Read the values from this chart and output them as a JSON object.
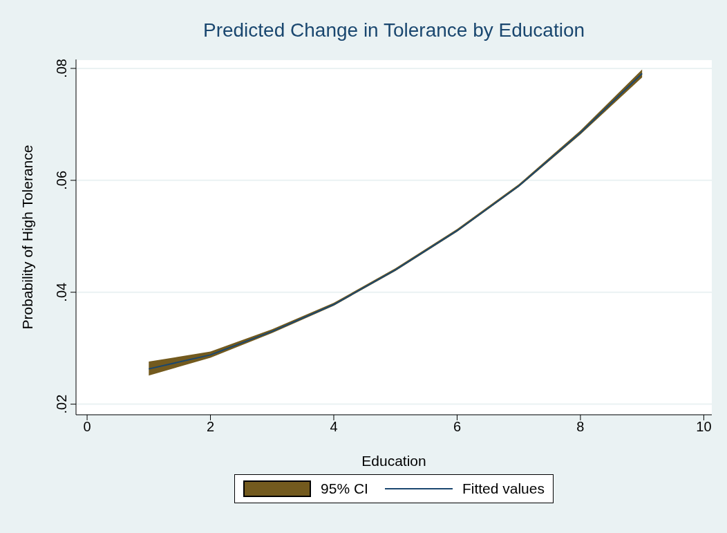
{
  "chart_data": {
    "type": "line",
    "title": "Predicted Change in Tolerance by Education",
    "xlabel": "Education",
    "ylabel": "Probability of High Tolerance",
    "x": [
      1,
      2,
      3,
      4,
      5,
      6,
      7,
      8,
      9
    ],
    "series": [
      {
        "name": "Fitted values",
        "color": "#1a476f",
        "values": [
          0.0263,
          0.0288,
          0.033,
          0.0378,
          0.044,
          0.051,
          0.059,
          0.0685,
          0.0791
        ],
        "lower": [
          0.0251,
          0.0283,
          0.0327,
          0.0376,
          0.0438,
          0.0508,
          0.0588,
          0.0682,
          0.0784
        ],
        "upper": [
          0.0276,
          0.0294,
          0.0334,
          0.0381,
          0.0443,
          0.0513,
          0.0593,
          0.0689,
          0.0798
        ]
      }
    ],
    "annotations": [
      "95% CI"
    ],
    "xlim": [
      -0.18,
      10.13
    ],
    "xticks": [
      0,
      2,
      4,
      6,
      8,
      10
    ],
    "ylim": [
      0.0181,
      0.0816
    ],
    "yticks": [
      {
        "value": 0.02,
        "label": ".02"
      },
      {
        "value": 0.04,
        "label": ".04"
      },
      {
        "value": 0.06,
        "label": ".06"
      },
      {
        "value": 0.08,
        "label": ".08"
      }
    ],
    "grid": "y",
    "legend": "bottom",
    "marker": "none"
  }
}
